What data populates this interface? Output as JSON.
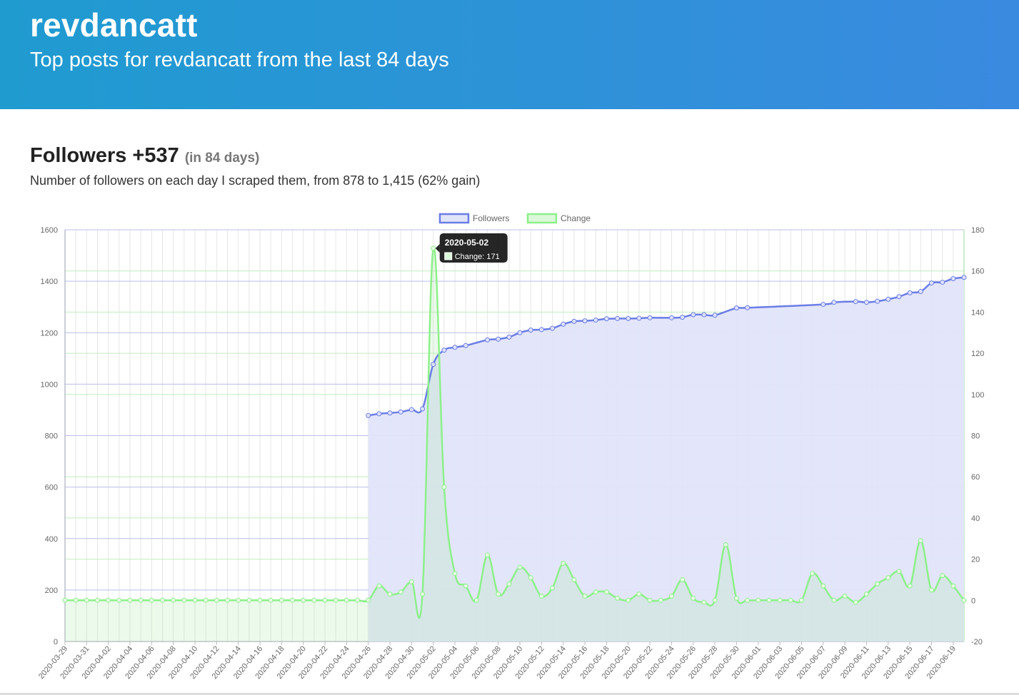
{
  "header": {
    "title": "revdancatt",
    "subtitle": "Top posts for revdancatt from the last 84 days"
  },
  "section": {
    "title": "Followers +537",
    "title_note": "(in 84 days)",
    "description": "Number of followers on each day I scraped them, from 878 to 1,415 (62% gain)"
  },
  "colors": {
    "banner_start": "#1f9bd0",
    "banner_end": "#3a8ae0",
    "followers_line": "#6b7de6",
    "followers_fill": "#e1e5fa",
    "change_line": "#8df08a"
  },
  "chart_data": {
    "type": "line",
    "legend_position": "top",
    "grid": true,
    "x_axis_tick_labels": [
      "2020-03-29",
      "2020-03-31",
      "2020-04-02",
      "2020-04-04",
      "2020-04-06",
      "2020-04-08",
      "2020-04-10",
      "2020-04-12",
      "2020-04-14",
      "2020-04-16",
      "2020-04-18",
      "2020-04-20",
      "2020-04-22",
      "2020-04-24",
      "2020-04-26",
      "2020-04-28",
      "2020-04-30",
      "2020-05-02",
      "2020-05-04",
      "2020-05-06",
      "2020-05-08",
      "2020-05-10",
      "2020-05-12",
      "2020-05-14",
      "2020-05-16",
      "2020-05-18",
      "2020-05-20",
      "2020-05-22",
      "2020-05-24",
      "2020-05-26",
      "2020-05-28",
      "2020-05-30",
      "2020-06-01",
      "2020-06-03",
      "2020-06-05",
      "2020-06-07",
      "2020-06-09",
      "2020-06-11",
      "2020-06-13",
      "2020-06-15",
      "2020-06-17",
      "2020-06-19"
    ],
    "x_range": [
      "2020-03-29",
      "2020-06-20"
    ],
    "y_left": {
      "range": [
        0,
        1600
      ],
      "ticks": [
        0,
        200,
        400,
        600,
        800,
        1000,
        1200,
        1400,
        1600
      ]
    },
    "y_right": {
      "range": [
        -20,
        180
      ],
      "ticks": [
        -20,
        0,
        20,
        40,
        60,
        80,
        100,
        120,
        140,
        160,
        180
      ]
    },
    "tooltip": {
      "date": "2020-05-02",
      "label": "Change: 171"
    },
    "series": [
      {
        "name": "Followers",
        "axis": "left",
        "color": "#6b7de6",
        "fill": true,
        "points": [
          [
            "2020-04-26",
            878
          ],
          [
            "2020-04-27",
            885
          ],
          [
            "2020-04-28",
            888
          ],
          [
            "2020-04-29",
            892
          ],
          [
            "2020-04-30",
            901
          ],
          [
            "2020-05-01",
            904
          ],
          [
            "2020-05-02",
            1077
          ],
          [
            "2020-05-03",
            1132
          ],
          [
            "2020-05-04",
            1143
          ],
          [
            "2020-05-05",
            1150
          ],
          [
            "2020-05-07",
            1172
          ],
          [
            "2020-05-08",
            1175
          ],
          [
            "2020-05-09",
            1183
          ],
          [
            "2020-05-10",
            1200
          ],
          [
            "2020-05-11",
            1210
          ],
          [
            "2020-05-12",
            1212
          ],
          [
            "2020-05-13",
            1217
          ],
          [
            "2020-05-14",
            1233
          ],
          [
            "2020-05-15",
            1244
          ],
          [
            "2020-05-16",
            1246
          ],
          [
            "2020-05-17",
            1249
          ],
          [
            "2020-05-18",
            1254
          ],
          [
            "2020-05-19",
            1255
          ],
          [
            "2020-05-20",
            1255
          ],
          [
            "2020-05-21",
            1256
          ],
          [
            "2020-05-22",
            1258
          ],
          [
            "2020-05-24",
            1258
          ],
          [
            "2020-05-25",
            1260
          ],
          [
            "2020-05-26",
            1270
          ],
          [
            "2020-05-27",
            1270
          ],
          [
            "2020-05-28",
            1268
          ],
          [
            "2020-05-30",
            1296
          ],
          [
            "2020-05-31",
            1297
          ],
          [
            "2020-06-07",
            1310
          ],
          [
            "2020-06-08",
            1318
          ],
          [
            "2020-06-10",
            1321
          ],
          [
            "2020-06-11",
            1318
          ],
          [
            "2020-06-12",
            1322
          ],
          [
            "2020-06-13",
            1330
          ],
          [
            "2020-06-14",
            1340
          ],
          [
            "2020-06-15",
            1355
          ],
          [
            "2020-06-16",
            1360
          ],
          [
            "2020-06-17",
            1393
          ],
          [
            "2020-06-18",
            1396
          ],
          [
            "2020-06-19",
            1410
          ],
          [
            "2020-06-20",
            1415
          ]
        ]
      },
      {
        "name": "Change",
        "axis": "right",
        "color": "#8df08a",
        "fill": true,
        "points": [
          [
            "2020-03-29",
            0
          ],
          [
            "2020-03-30",
            0
          ],
          [
            "2020-03-31",
            0
          ],
          [
            "2020-04-01",
            0
          ],
          [
            "2020-04-02",
            0
          ],
          [
            "2020-04-03",
            0
          ],
          [
            "2020-04-04",
            0
          ],
          [
            "2020-04-05",
            0
          ],
          [
            "2020-04-06",
            0
          ],
          [
            "2020-04-07",
            0
          ],
          [
            "2020-04-08",
            0
          ],
          [
            "2020-04-09",
            0
          ],
          [
            "2020-04-10",
            0
          ],
          [
            "2020-04-11",
            0
          ],
          [
            "2020-04-12",
            0
          ],
          [
            "2020-04-13",
            0
          ],
          [
            "2020-04-14",
            0
          ],
          [
            "2020-04-15",
            0
          ],
          [
            "2020-04-16",
            0
          ],
          [
            "2020-04-17",
            0
          ],
          [
            "2020-04-18",
            0
          ],
          [
            "2020-04-19",
            0
          ],
          [
            "2020-04-20",
            0
          ],
          [
            "2020-04-21",
            0
          ],
          [
            "2020-04-22",
            0
          ],
          [
            "2020-04-23",
            0
          ],
          [
            "2020-04-24",
            0
          ],
          [
            "2020-04-25",
            0
          ],
          [
            "2020-04-26",
            0
          ],
          [
            "2020-04-27",
            7
          ],
          [
            "2020-04-28",
            3
          ],
          [
            "2020-04-29",
            4
          ],
          [
            "2020-04-30",
            9
          ],
          [
            "2020-05-01",
            3
          ],
          [
            "2020-05-02",
            171
          ],
          [
            "2020-05-03",
            55
          ],
          [
            "2020-05-04",
            13
          ],
          [
            "2020-05-05",
            7
          ],
          [
            "2020-05-06",
            0
          ],
          [
            "2020-05-07",
            22
          ],
          [
            "2020-05-08",
            3
          ],
          [
            "2020-05-09",
            8
          ],
          [
            "2020-05-10",
            16
          ],
          [
            "2020-05-11",
            11
          ],
          [
            "2020-05-12",
            2
          ],
          [
            "2020-05-13",
            6
          ],
          [
            "2020-05-14",
            18
          ],
          [
            "2020-05-15",
            10
          ],
          [
            "2020-05-16",
            2
          ],
          [
            "2020-05-17",
            4
          ],
          [
            "2020-05-18",
            4
          ],
          [
            "2020-05-19",
            1
          ],
          [
            "2020-05-20",
            0
          ],
          [
            "2020-05-21",
            3
          ],
          [
            "2020-05-22",
            0
          ],
          [
            "2020-05-23",
            0
          ],
          [
            "2020-05-24",
            2
          ],
          [
            "2020-05-25",
            10
          ],
          [
            "2020-05-26",
            1
          ],
          [
            "2020-05-27",
            -1
          ],
          [
            "2020-05-28",
            0
          ],
          [
            "2020-05-29",
            27
          ],
          [
            "2020-05-30",
            1
          ],
          [
            "2020-05-31",
            0
          ],
          [
            "2020-06-01",
            0
          ],
          [
            "2020-06-02",
            0
          ],
          [
            "2020-06-03",
            0
          ],
          [
            "2020-06-04",
            0
          ],
          [
            "2020-06-05",
            0
          ],
          [
            "2020-06-06",
            13
          ],
          [
            "2020-06-07",
            7
          ],
          [
            "2020-06-08",
            0
          ],
          [
            "2020-06-09",
            2
          ],
          [
            "2020-06-10",
            -1
          ],
          [
            "2020-06-11",
            3
          ],
          [
            "2020-06-12",
            8
          ],
          [
            "2020-06-13",
            11
          ],
          [
            "2020-06-14",
            14
          ],
          [
            "2020-06-15",
            7
          ],
          [
            "2020-06-16",
            29
          ],
          [
            "2020-06-17",
            5
          ],
          [
            "2020-06-18",
            12
          ],
          [
            "2020-06-19",
            7
          ],
          [
            "2020-06-20",
            0
          ]
        ]
      }
    ]
  }
}
